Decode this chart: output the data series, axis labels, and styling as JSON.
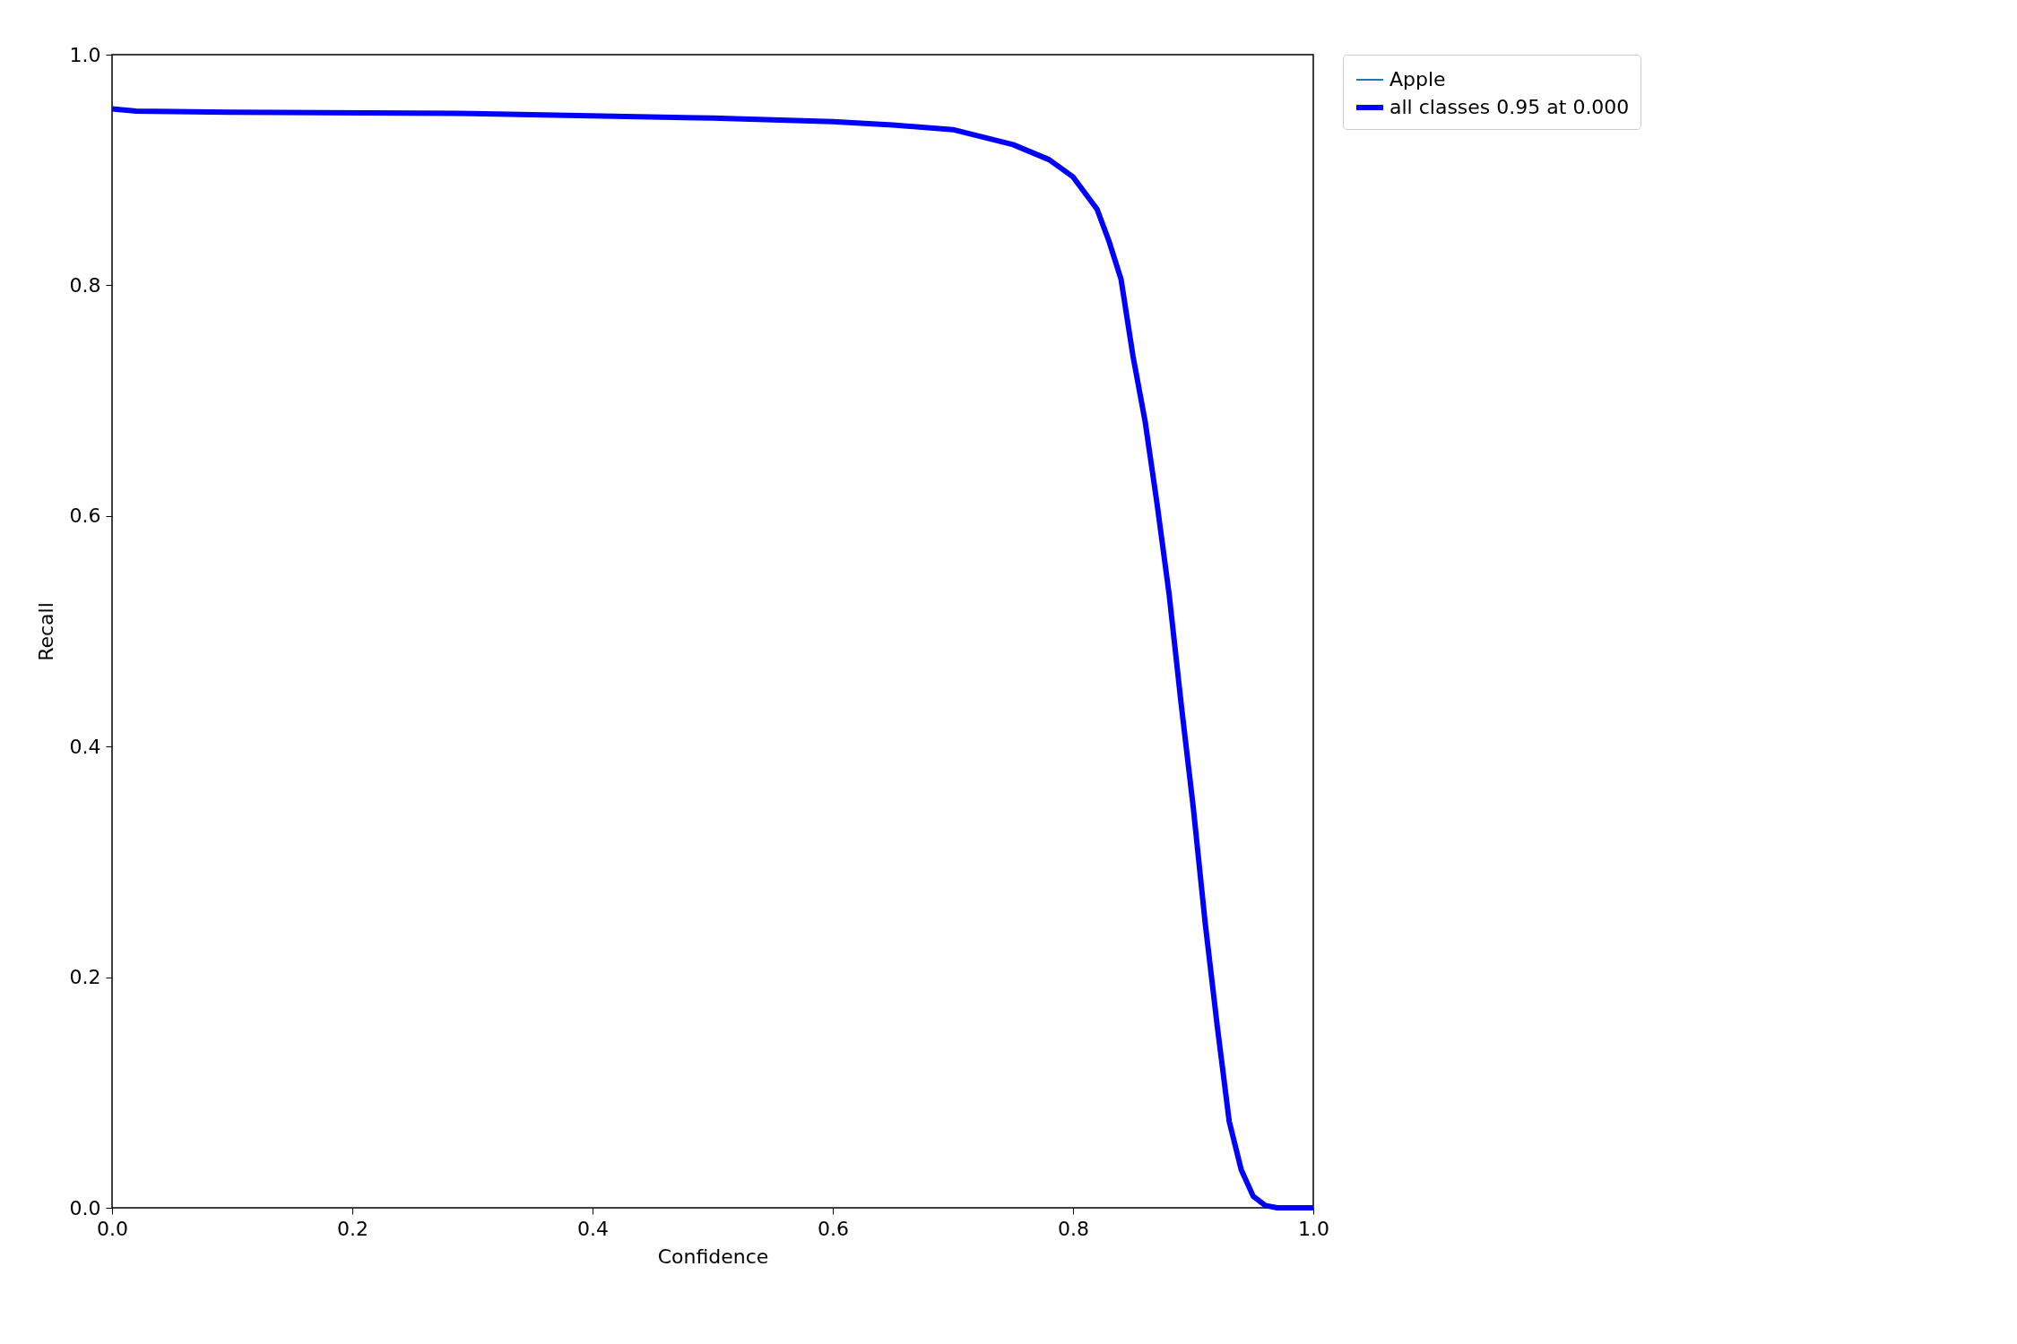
{
  "chart_data": {
    "type": "line",
    "xlabel": "Confidence",
    "ylabel": "Recall",
    "x": [
      0,
      0.02,
      0.1,
      0.3,
      0.5,
      0.6,
      0.65,
      0.7,
      0.75,
      0.78,
      0.8,
      0.82,
      0.83,
      0.84,
      0.85,
      0.86,
      0.87,
      0.88,
      0.89,
      0.9,
      0.91,
      0.92,
      0.93,
      0.94,
      0.95,
      0.96,
      0.97,
      1.0
    ],
    "series": [
      {
        "name": "Apple",
        "color": "#1f77b4",
        "values": [
          null,
          null,
          null,
          null,
          null,
          null,
          null,
          null,
          null,
          null,
          null,
          null,
          null,
          null,
          null,
          null,
          null,
          null,
          null,
          null,
          null,
          null,
          null,
          null,
          null,
          null,
          null,
          null
        ]
      },
      {
        "name": "all classes 0.95 at 0.000",
        "color": "#0000ff",
        "values": [
          0.953,
          0.951,
          0.95,
          0.949,
          0.945,
          0.942,
          0.939,
          0.935,
          0.922,
          0.909,
          0.894,
          0.866,
          0.838,
          0.805,
          0.738,
          0.682,
          0.61,
          0.532,
          0.437,
          0.348,
          0.247,
          0.158,
          0.075,
          0.033,
          0.01,
          0.002,
          0,
          0
        ]
      }
    ],
    "xlim": [
      0,
      1
    ],
    "ylim": [
      0,
      1
    ],
    "xticks": [
      {
        "value": 0,
        "label": "0.0"
      },
      0.2,
      0.4,
      0.6,
      0.8,
      {
        "value": 1,
        "label": "1.0"
      }
    ],
    "yticks": [
      {
        "value": 0,
        "label": "0.0"
      },
      0.2,
      0.4,
      0.6,
      0.8,
      {
        "value": 1,
        "label": "1.0"
      }
    ],
    "grid": false,
    "legend": "top right",
    "line_style": "solid",
    "marker": "none"
  }
}
